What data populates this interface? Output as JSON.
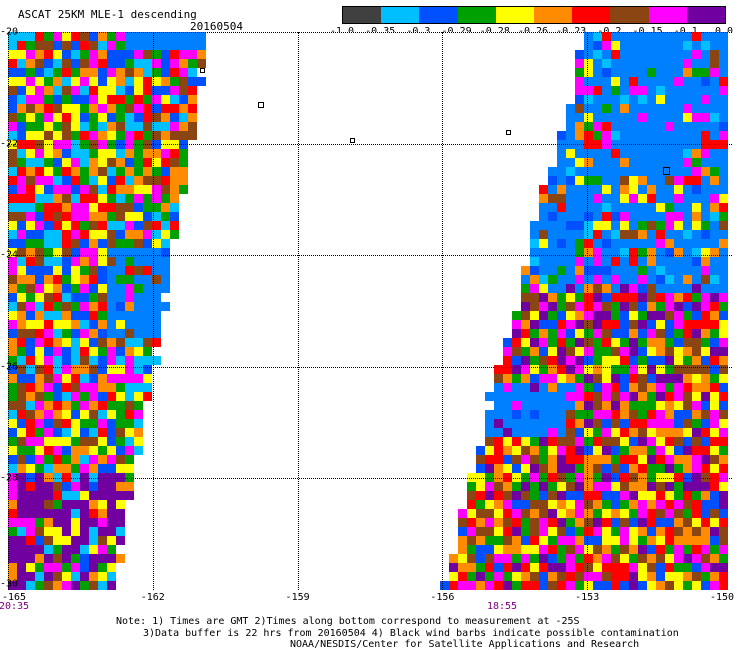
{
  "title": "ASCAT 25KM MLE-1 descending",
  "date": "20160504",
  "legend": {
    "colors": [
      "#404040",
      "#00bfff",
      "#0050ff",
      "#00a000",
      "#ffff00",
      "#ff8c00",
      "#ff0000",
      "#8b4513",
      "#ff00ff",
      "#7000a0"
    ],
    "labels": [
      "-1.0",
      "-0.35",
      "-0.3",
      "-0.29",
      "-0.28",
      "-0.26",
      "-0.23",
      "-0.2",
      "-0.15",
      "-0.1",
      "0.0"
    ]
  },
  "lat_labels": [
    "-20",
    "-22",
    "-24",
    "-26",
    "-28",
    "-30"
  ],
  "lon_labels": [
    "-165",
    "-162",
    "-159",
    "-156",
    "-153",
    "-150"
  ],
  "times": [
    "20:35",
    "18:55"
  ],
  "notes": [
    "Note: 1) Times are GMT 2)Times along bottom correspond to measurement at -25S",
    "3)Data buffer is 22 hrs from 20160504 4) Black wind barbs indicate possible contamination",
    "NOAA/NESDIS/Center for Satellite Applications and Research"
  ]
}
